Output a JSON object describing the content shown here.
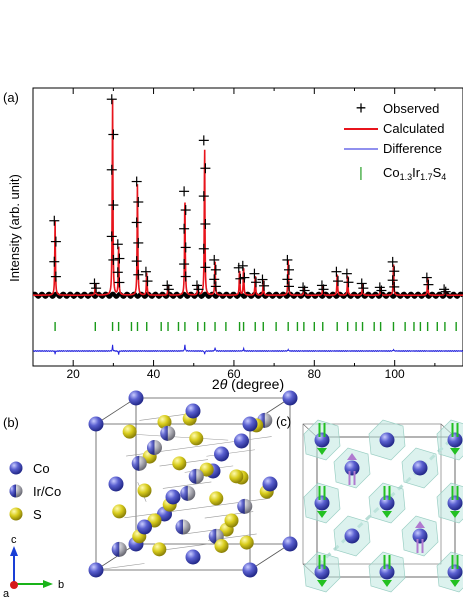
{
  "panel_labels": {
    "a": "(a)",
    "b": "(b)",
    "c": "(c)"
  },
  "colors": {
    "observed": "#000000",
    "calculated": "#e8141c",
    "difference": "#2222dd",
    "bragg": "#1a9a1a",
    "co_atom": "#4f55c8",
    "s_atom": "#d6c81a",
    "ir_atom": "#a8a8b0",
    "polyhedron": "#bfe8e0",
    "spin_up_arrow": "#b07ad0",
    "spin_down_arrow": "#22c022",
    "axis_c": "#1a3fd6",
    "axis_b": "#19b319",
    "axis_a": "#d61a1a"
  },
  "legend": {
    "observed": "Observed",
    "calculated": "Calculated",
    "difference": "Difference",
    "phase_base": "Co",
    "phase_sub1": "1.3",
    "phase_mid": "Ir",
    "phase_sub2": "1.7",
    "phase_s": "S",
    "phase_sub3": "4",
    "observed_symbol": "+",
    "bragg_symbol": "|"
  },
  "structure_legend": {
    "co": "Co",
    "ir_co": "Ir/Co",
    "s": "S"
  },
  "axes_labels": {
    "c": "c",
    "b": "b",
    "a": "a"
  },
  "chart_data": {
    "type": "line",
    "title": "",
    "xlabel_prefix": "2",
    "xlabel_symbol": "θ",
    "xlabel_suffix": " (degree)",
    "ylabel": "Intensity (arb. unit)",
    "xlim": [
      10,
      117
    ],
    "xticks": [
      20,
      40,
      60,
      80,
      100
    ],
    "xticklabels": [
      "20",
      "40",
      "60",
      "80",
      "100"
    ],
    "yticks": "none",
    "grid": false,
    "legend_position": "top-right",
    "background_level": 0.055,
    "peaks": [
      {
        "x": 15.5,
        "h": 0.38
      },
      {
        "x": 25.5,
        "h": 0.06
      },
      {
        "x": 29.8,
        "h": 1.0
      },
      {
        "x": 31.3,
        "h": 0.26
      },
      {
        "x": 36.0,
        "h": 0.58
      },
      {
        "x": 38.3,
        "h": 0.12
      },
      {
        "x": 43.6,
        "h": 0.05
      },
      {
        "x": 47.8,
        "h": 0.53
      },
      {
        "x": 51.0,
        "h": 0.05
      },
      {
        "x": 52.7,
        "h": 0.79
      },
      {
        "x": 55.3,
        "h": 0.18
      },
      {
        "x": 61.4,
        "h": 0.14
      },
      {
        "x": 62.4,
        "h": 0.15
      },
      {
        "x": 65.3,
        "h": 0.11
      },
      {
        "x": 67.3,
        "h": 0.08
      },
      {
        "x": 73.5,
        "h": 0.18
      },
      {
        "x": 77.4,
        "h": 0.04
      },
      {
        "x": 82.1,
        "h": 0.05
      },
      {
        "x": 85.7,
        "h": 0.12
      },
      {
        "x": 88.3,
        "h": 0.11
      },
      {
        "x": 92.0,
        "h": 0.06
      },
      {
        "x": 96.5,
        "h": 0.04
      },
      {
        "x": 99.7,
        "h": 0.17
      },
      {
        "x": 108.2,
        "h": 0.09
      },
      {
        "x": 112.5,
        "h": 0.03
      }
    ],
    "bragg_positions": [
      15.5,
      25.5,
      29.8,
      31.3,
      34.5,
      36.0,
      38.3,
      41.9,
      43.6,
      46.2,
      47.8,
      51.0,
      52.7,
      55.3,
      58.0,
      61.4,
      62.4,
      65.3,
      67.3,
      70.5,
      73.5,
      75.8,
      77.4,
      80.0,
      82.1,
      85.7,
      88.3,
      90.4,
      92.0,
      94.9,
      96.5,
      99.7,
      102.6,
      104.8,
      106.4,
      108.2,
      110.6,
      112.5,
      115.3
    ],
    "difference_spikes": [
      {
        "x": 15.5,
        "d": -0.015
      },
      {
        "x": 29.8,
        "d": 0.03
      },
      {
        "x": 31.3,
        "d": -0.02
      },
      {
        "x": 47.8,
        "d": 0.04
      },
      {
        "x": 52.7,
        "d": -0.02
      },
      {
        "x": 55.3,
        "d": 0.02
      },
      {
        "x": 62.4,
        "d": 0.015
      },
      {
        "x": 73.5,
        "d": 0.01
      },
      {
        "x": 99.7,
        "d": 0.01
      }
    ]
  }
}
